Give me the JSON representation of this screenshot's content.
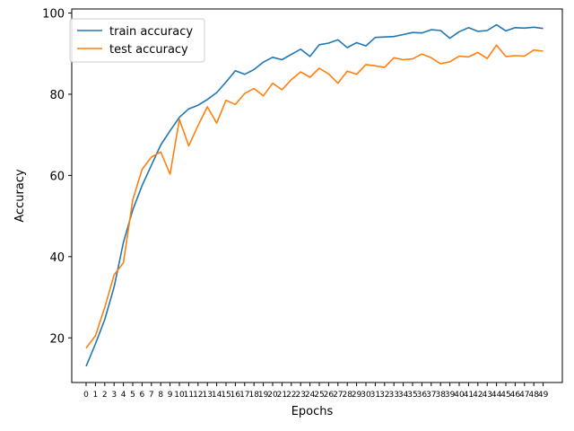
{
  "chart_data": {
    "type": "line",
    "xlabel": "Epochs",
    "ylabel": "Accuracy",
    "categories": [
      "0",
      "1",
      "2",
      "3",
      "4",
      "5",
      "6",
      "7",
      "8",
      "9",
      "10",
      "11",
      "12",
      "13",
      "14",
      "15",
      "16",
      "17",
      "18",
      "19",
      "20",
      "21",
      "22",
      "23",
      "24",
      "25",
      "26",
      "27",
      "28",
      "29",
      "30",
      "31",
      "32",
      "33",
      "34",
      "35",
      "36",
      "37",
      "38",
      "39",
      "40",
      "41",
      "42",
      "43",
      "44",
      "45",
      "46",
      "47",
      "48",
      "49"
    ],
    "ylim": [
      9,
      101
    ],
    "yticks": [
      20,
      40,
      60,
      80,
      100
    ],
    "grid": false,
    "legend_position": "upper-left",
    "series": [
      {
        "name": "train accuracy",
        "color": "#1f77b4",
        "values": [
          13.0,
          18.5,
          24.5,
          32.5,
          43.5,
          51.5,
          57.5,
          62.5,
          67.5,
          71.0,
          74.3,
          76.4,
          77.3,
          78.7,
          80.4,
          83.0,
          85.8,
          84.9,
          86.1,
          87.9,
          89.1,
          88.5,
          89.8,
          91.1,
          89.3,
          92.2,
          92.6,
          93.4,
          91.5,
          92.7,
          91.9,
          94.0,
          94.1,
          94.2,
          94.7,
          95.2,
          95.1,
          95.9,
          95.7,
          93.8,
          95.4,
          96.4,
          95.5,
          95.7,
          97.1,
          95.6,
          96.4,
          96.3,
          96.5,
          96.2
        ]
      },
      {
        "name": "test accuracy",
        "color": "#ff7f0e",
        "values": [
          17.5,
          20.5,
          27.5,
          35.5,
          38.5,
          54.0,
          61.5,
          64.5,
          65.8,
          60.3,
          73.8,
          67.3,
          72.3,
          76.9,
          72.9,
          78.5,
          77.5,
          80.2,
          81.4,
          79.6,
          82.7,
          81.1,
          83.6,
          85.5,
          84.2,
          86.4,
          85.0,
          82.7,
          85.7,
          84.9,
          87.3,
          87.0,
          86.6,
          89.0,
          88.5,
          88.7,
          89.9,
          89.0,
          87.5,
          88.0,
          89.4,
          89.2,
          90.3,
          88.8,
          92.1,
          89.3,
          89.5,
          89.4,
          90.9,
          90.6
        ]
      }
    ]
  }
}
